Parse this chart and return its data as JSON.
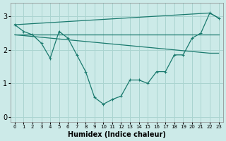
{
  "bg_color": "#cceae8",
  "grid_color": "#aad4d0",
  "line_color": "#1a7a6e",
  "xlabel": "Humidex (Indice chaleur)",
  "xlim": [
    -0.5,
    23.5
  ],
  "ylim": [
    -0.15,
    3.4
  ],
  "yticks": [
    0,
    1,
    2,
    3
  ],
  "xticks": [
    0,
    1,
    2,
    3,
    4,
    5,
    6,
    7,
    8,
    9,
    10,
    11,
    12,
    13,
    14,
    15,
    16,
    17,
    18,
    19,
    20,
    21,
    22,
    23
  ],
  "line1_x": [
    0,
    1,
    2,
    3,
    4,
    5,
    6,
    7,
    8,
    9,
    10,
    11,
    12,
    13,
    14,
    15,
    16,
    17,
    18,
    19,
    20,
    21,
    22,
    23
  ],
  "line1_y": [
    2.75,
    2.55,
    2.45,
    2.2,
    1.75,
    2.55,
    2.35,
    1.85,
    1.35,
    0.58,
    0.38,
    0.52,
    0.62,
    1.1,
    1.1,
    1.0,
    1.35,
    1.35,
    1.85,
    1.85,
    2.35,
    2.5,
    3.1,
    2.95
  ],
  "line2_x": [
    0,
    22,
    23
  ],
  "line2_y": [
    2.45,
    2.45,
    2.45
  ],
  "line3_x": [
    0,
    22,
    23
  ],
  "line3_y": [
    2.45,
    1.9,
    1.9
  ],
  "line4_x": [
    0,
    22,
    23
  ],
  "line4_y": [
    2.75,
    3.1,
    2.95
  ]
}
